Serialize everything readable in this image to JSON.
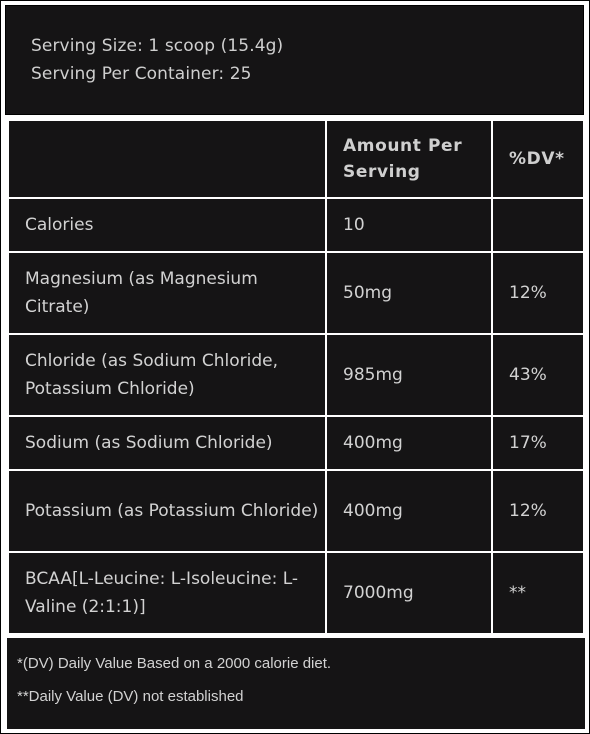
{
  "serving": {
    "size": "Serving Size: 1 scoop (15.4g)",
    "per_container": "Serving Per Container: 25"
  },
  "table": {
    "headers": [
      "",
      "Amount Per Serving",
      "%DV*"
    ],
    "rows": [
      {
        "nutrient": "Calories",
        "amount": "10",
        "dv": ""
      },
      {
        "nutrient": "Magnesium (as Magnesium Citrate)",
        "amount": "50mg",
        "dv": "12%"
      },
      {
        "nutrient": "Chloride (as Sodium Chloride, Potassium Chloride)",
        "amount": "985mg",
        "dv": "43%"
      },
      {
        "nutrient": "Sodium (as Sodium Chloride)",
        "amount": "400mg",
        "dv": "17%"
      },
      {
        "nutrient": "Potassium (as Potassium Chloride)",
        "amount": "400mg",
        "dv": "12%"
      },
      {
        "nutrient": "BCAA[L-Leucine: L-Isoleucine: L-Valine (2:1:1)]",
        "amount": "7000mg",
        "dv": "**"
      }
    ]
  },
  "footnotes": [
    "*(DV) Daily Value Based on a 2000 calorie diet.",
    "**Daily Value (DV) not established"
  ],
  "colors": {
    "panel": "#151415",
    "text": "#d2d2d2",
    "divider": "#ffffff"
  }
}
